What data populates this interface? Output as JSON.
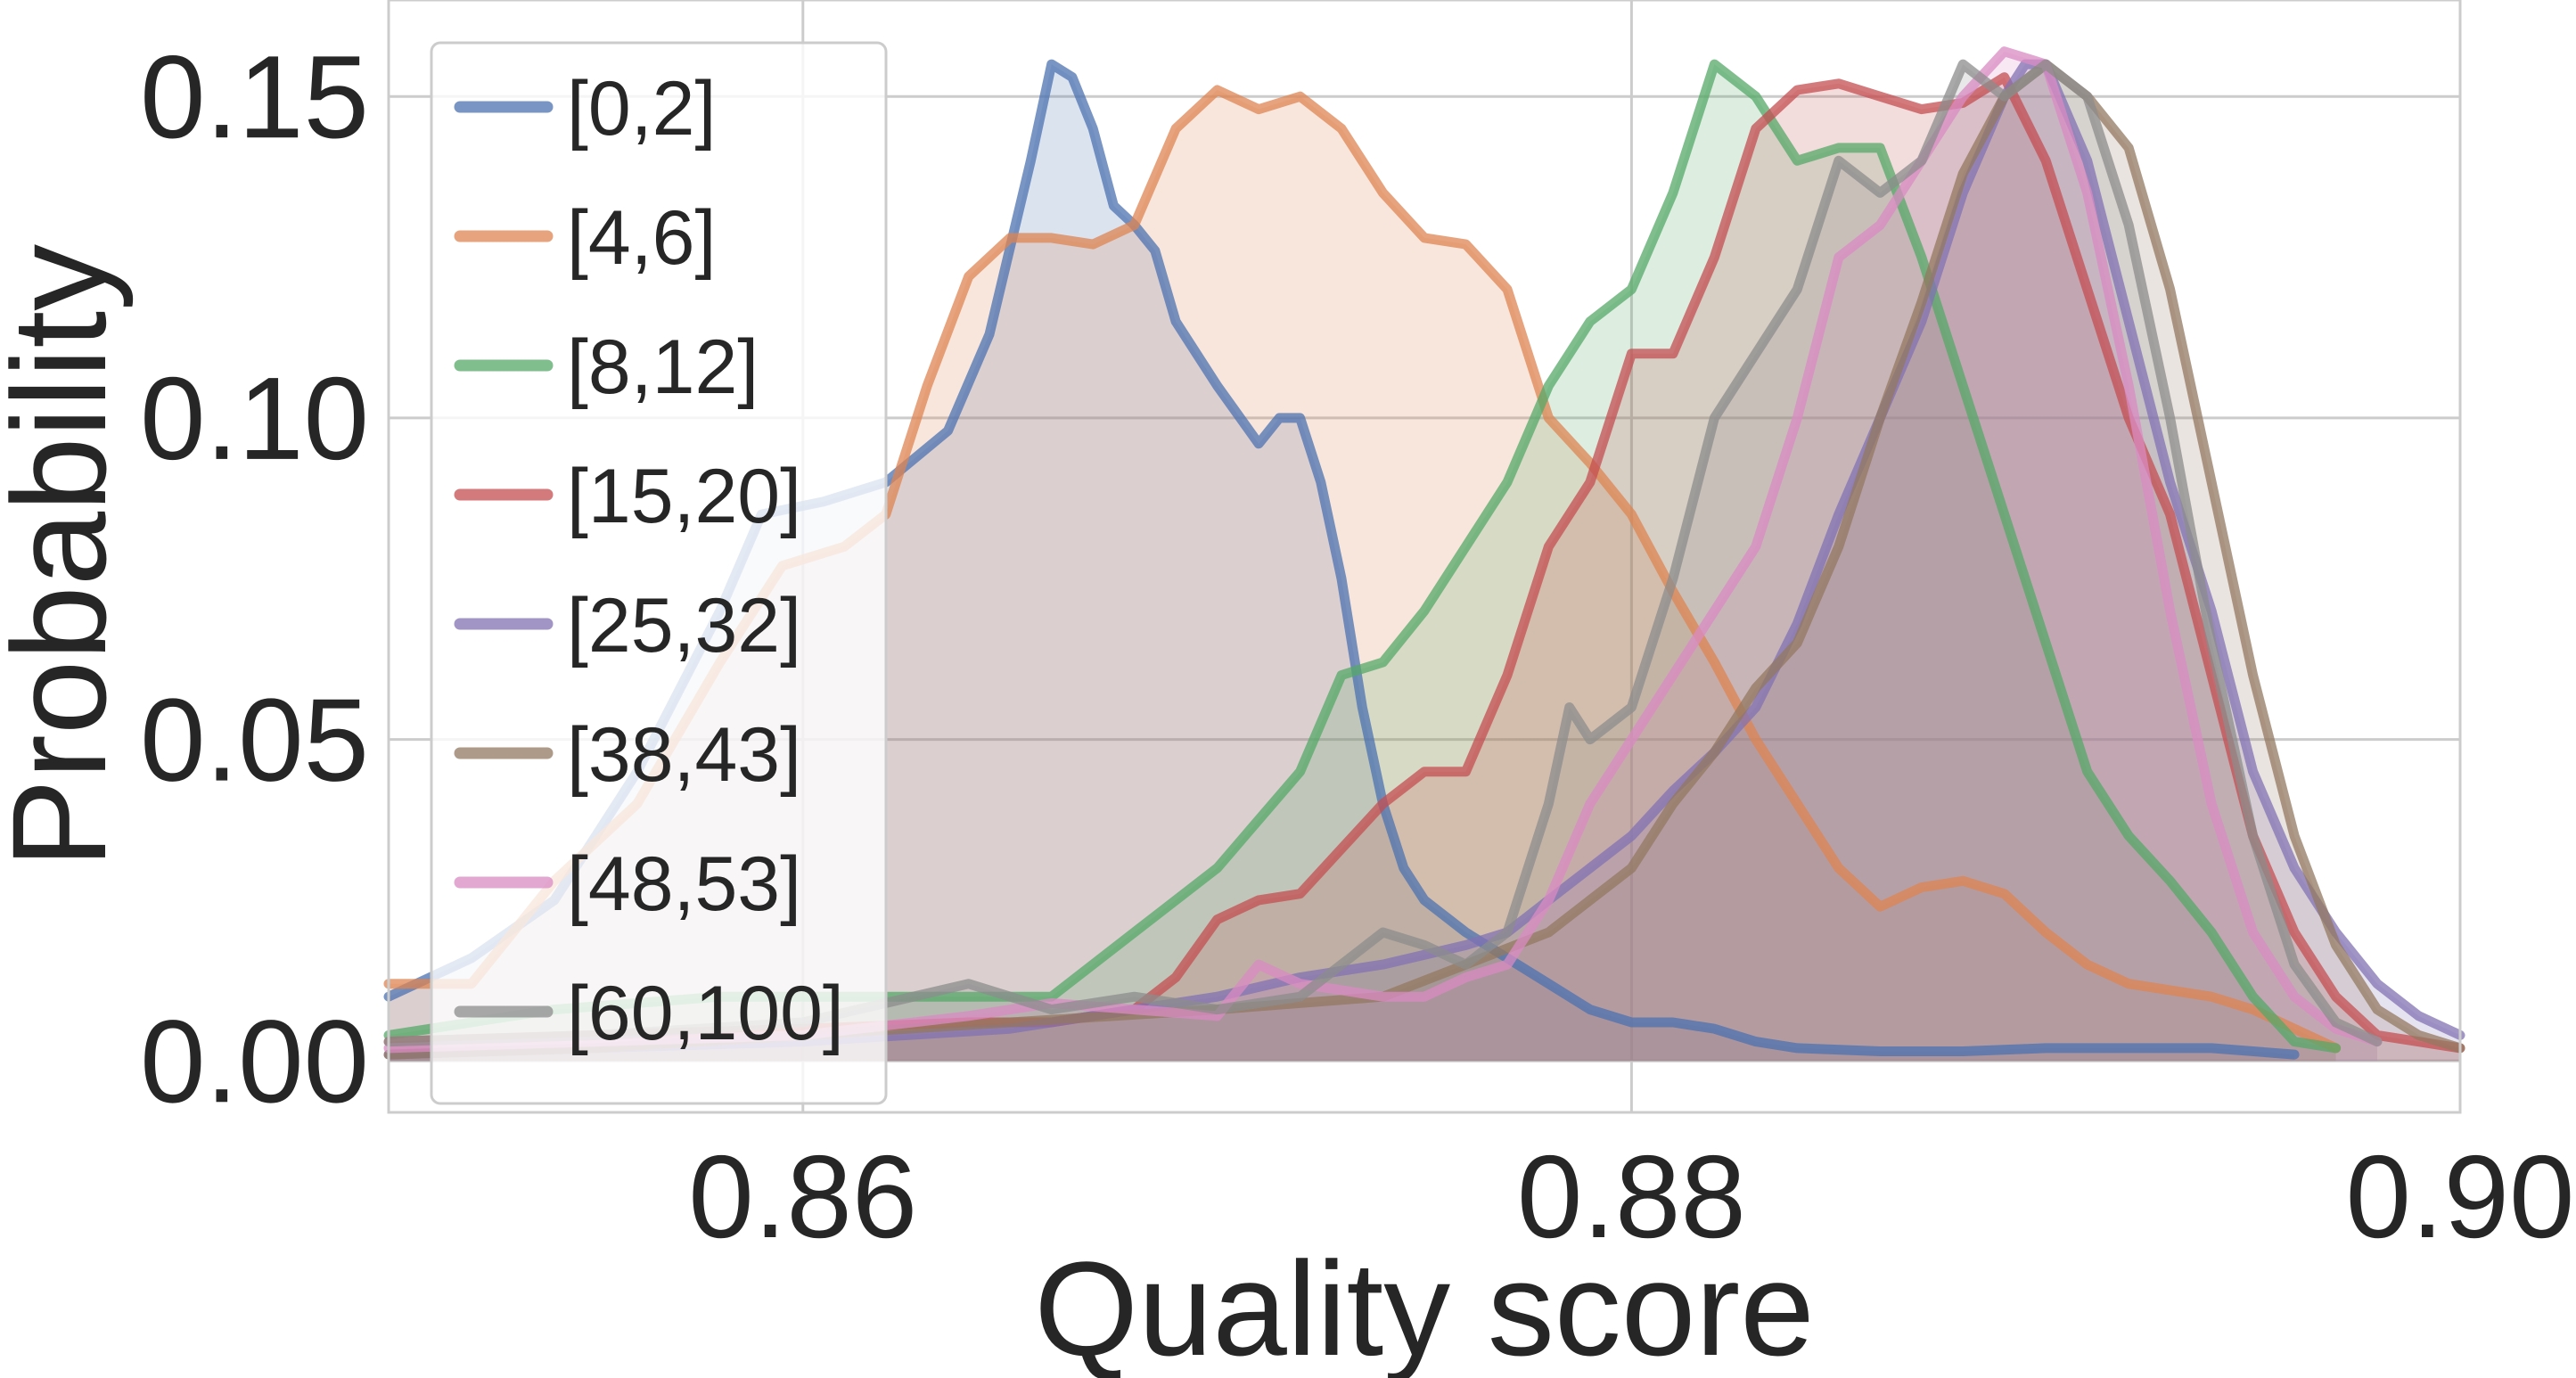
{
  "chart_data": {
    "type": "area",
    "xlabel": "Quality score",
    "ylabel": "Probability",
    "xlim": [
      0.85,
      0.9
    ],
    "ylim": [
      -0.008,
      0.165
    ],
    "x_ticks": [
      0.86,
      0.88,
      0.9
    ],
    "x_tick_labels": [
      "0.86",
      "0.88",
      "0.90"
    ],
    "y_ticks": [
      0.0,
      0.05,
      0.1,
      0.15
    ],
    "y_tick_labels": [
      "0.00",
      "0.05",
      "0.10",
      "0.15"
    ],
    "grid": true,
    "legend_position": "upper-left",
    "series": [
      {
        "name": "[0,2]",
        "color": "#4c72b0",
        "points": [
          [
            0.85,
            0.01
          ],
          [
            0.852,
            0.016
          ],
          [
            0.854,
            0.025
          ],
          [
            0.856,
            0.045
          ],
          [
            0.858,
            0.07
          ],
          [
            0.859,
            0.085
          ],
          [
            0.8605,
            0.087
          ],
          [
            0.862,
            0.09
          ],
          [
            0.8635,
            0.098
          ],
          [
            0.8645,
            0.113
          ],
          [
            0.8655,
            0.14
          ],
          [
            0.866,
            0.155
          ],
          [
            0.8665,
            0.153
          ],
          [
            0.867,
            0.145
          ],
          [
            0.8675,
            0.133
          ],
          [
            0.868,
            0.13
          ],
          [
            0.8685,
            0.126
          ],
          [
            0.869,
            0.115
          ],
          [
            0.87,
            0.105
          ],
          [
            0.871,
            0.096
          ],
          [
            0.8715,
            0.1
          ],
          [
            0.872,
            0.1
          ],
          [
            0.8725,
            0.09
          ],
          [
            0.873,
            0.075
          ],
          [
            0.8735,
            0.055
          ],
          [
            0.874,
            0.04
          ],
          [
            0.8745,
            0.03
          ],
          [
            0.875,
            0.025
          ],
          [
            0.876,
            0.02
          ],
          [
            0.877,
            0.016
          ],
          [
            0.878,
            0.012
          ],
          [
            0.879,
            0.008
          ],
          [
            0.88,
            0.006
          ],
          [
            0.881,
            0.006
          ],
          [
            0.882,
            0.005
          ],
          [
            0.883,
            0.003
          ],
          [
            0.884,
            0.002
          ],
          [
            0.886,
            0.0015
          ],
          [
            0.888,
            0.0015
          ],
          [
            0.89,
            0.002
          ],
          [
            0.892,
            0.002
          ],
          [
            0.894,
            0.002
          ],
          [
            0.896,
            0.001
          ]
        ]
      },
      {
        "name": "[4,6]",
        "color": "#dd8452",
        "points": [
          [
            0.85,
            0.012
          ],
          [
            0.852,
            0.012
          ],
          [
            0.854,
            0.028
          ],
          [
            0.856,
            0.04
          ],
          [
            0.858,
            0.062
          ],
          [
            0.8595,
            0.077
          ],
          [
            0.861,
            0.08
          ],
          [
            0.862,
            0.085
          ],
          [
            0.863,
            0.105
          ],
          [
            0.864,
            0.122
          ],
          [
            0.865,
            0.128
          ],
          [
            0.866,
            0.128
          ],
          [
            0.867,
            0.127
          ],
          [
            0.868,
            0.13
          ],
          [
            0.869,
            0.145
          ],
          [
            0.87,
            0.151
          ],
          [
            0.871,
            0.148
          ],
          [
            0.872,
            0.15
          ],
          [
            0.873,
            0.145
          ],
          [
            0.874,
            0.135
          ],
          [
            0.875,
            0.128
          ],
          [
            0.876,
            0.127
          ],
          [
            0.877,
            0.12
          ],
          [
            0.878,
            0.1
          ],
          [
            0.879,
            0.093
          ],
          [
            0.88,
            0.085
          ],
          [
            0.881,
            0.073
          ],
          [
            0.882,
            0.062
          ],
          [
            0.883,
            0.05
          ],
          [
            0.884,
            0.04
          ],
          [
            0.885,
            0.03
          ],
          [
            0.886,
            0.024
          ],
          [
            0.887,
            0.027
          ],
          [
            0.888,
            0.028
          ],
          [
            0.889,
            0.026
          ],
          [
            0.89,
            0.02
          ],
          [
            0.891,
            0.015
          ],
          [
            0.892,
            0.012
          ],
          [
            0.893,
            0.011
          ],
          [
            0.894,
            0.01
          ],
          [
            0.895,
            0.008
          ],
          [
            0.896,
            0.005
          ],
          [
            0.897,
            0.002
          ]
        ]
      },
      {
        "name": "[8,12]",
        "color": "#55a868",
        "points": [
          [
            0.85,
            0.004
          ],
          [
            0.852,
            0.006
          ],
          [
            0.854,
            0.008
          ],
          [
            0.856,
            0.009
          ],
          [
            0.858,
            0.01
          ],
          [
            0.86,
            0.01
          ],
          [
            0.862,
            0.01
          ],
          [
            0.864,
            0.01
          ],
          [
            0.866,
            0.01
          ],
          [
            0.868,
            0.02
          ],
          [
            0.87,
            0.03
          ],
          [
            0.872,
            0.045
          ],
          [
            0.873,
            0.06
          ],
          [
            0.874,
            0.062
          ],
          [
            0.875,
            0.07
          ],
          [
            0.876,
            0.08
          ],
          [
            0.877,
            0.09
          ],
          [
            0.878,
            0.105
          ],
          [
            0.879,
            0.115
          ],
          [
            0.88,
            0.12
          ],
          [
            0.881,
            0.135
          ],
          [
            0.882,
            0.155
          ],
          [
            0.883,
            0.15
          ],
          [
            0.884,
            0.14
          ],
          [
            0.885,
            0.142
          ],
          [
            0.886,
            0.142
          ],
          [
            0.887,
            0.125
          ],
          [
            0.888,
            0.105
          ],
          [
            0.889,
            0.085
          ],
          [
            0.89,
            0.065
          ],
          [
            0.891,
            0.045
          ],
          [
            0.892,
            0.035
          ],
          [
            0.893,
            0.028
          ],
          [
            0.894,
            0.02
          ],
          [
            0.895,
            0.01
          ],
          [
            0.896,
            0.003
          ],
          [
            0.897,
            0.002
          ]
        ]
      },
      {
        "name": "[15,20]",
        "color": "#c44e52",
        "points": [
          [
            0.85,
            0.003
          ],
          [
            0.855,
            0.004
          ],
          [
            0.86,
            0.005
          ],
          [
            0.864,
            0.006
          ],
          [
            0.866,
            0.006
          ],
          [
            0.868,
            0.008
          ],
          [
            0.869,
            0.013
          ],
          [
            0.87,
            0.022
          ],
          [
            0.871,
            0.025
          ],
          [
            0.872,
            0.026
          ],
          [
            0.873,
            0.033
          ],
          [
            0.874,
            0.04
          ],
          [
            0.875,
            0.045
          ],
          [
            0.876,
            0.045
          ],
          [
            0.877,
            0.06
          ],
          [
            0.878,
            0.08
          ],
          [
            0.879,
            0.09
          ],
          [
            0.88,
            0.11
          ],
          [
            0.881,
            0.11
          ],
          [
            0.882,
            0.125
          ],
          [
            0.883,
            0.145
          ],
          [
            0.884,
            0.151
          ],
          [
            0.885,
            0.152
          ],
          [
            0.886,
            0.15
          ],
          [
            0.887,
            0.148
          ],
          [
            0.888,
            0.149
          ],
          [
            0.889,
            0.153
          ],
          [
            0.89,
            0.14
          ],
          [
            0.891,
            0.12
          ],
          [
            0.892,
            0.1
          ],
          [
            0.893,
            0.085
          ],
          [
            0.894,
            0.06
          ],
          [
            0.895,
            0.035
          ],
          [
            0.896,
            0.02
          ],
          [
            0.897,
            0.01
          ],
          [
            0.898,
            0.004
          ],
          [
            0.9,
            0.002
          ]
        ]
      },
      {
        "name": "[25,32]",
        "color": "#8172b3",
        "points": [
          [
            0.85,
            0.001
          ],
          [
            0.855,
            0.002
          ],
          [
            0.86,
            0.003
          ],
          [
            0.865,
            0.005
          ],
          [
            0.868,
            0.008
          ],
          [
            0.87,
            0.01
          ],
          [
            0.872,
            0.013
          ],
          [
            0.874,
            0.015
          ],
          [
            0.876,
            0.018
          ],
          [
            0.877,
            0.02
          ],
          [
            0.878,
            0.025
          ],
          [
            0.879,
            0.03
          ],
          [
            0.88,
            0.035
          ],
          [
            0.881,
            0.042
          ],
          [
            0.882,
            0.048
          ],
          [
            0.883,
            0.055
          ],
          [
            0.884,
            0.068
          ],
          [
            0.885,
            0.085
          ],
          [
            0.886,
            0.1
          ],
          [
            0.887,
            0.115
          ],
          [
            0.888,
            0.135
          ],
          [
            0.889,
            0.15
          ],
          [
            0.8895,
            0.155
          ],
          [
            0.89,
            0.155
          ],
          [
            0.891,
            0.14
          ],
          [
            0.892,
            0.115
          ],
          [
            0.893,
            0.09
          ],
          [
            0.894,
            0.07
          ],
          [
            0.895,
            0.045
          ],
          [
            0.896,
            0.03
          ],
          [
            0.897,
            0.02
          ],
          [
            0.898,
            0.012
          ],
          [
            0.899,
            0.007
          ],
          [
            0.9,
            0.004
          ]
        ]
      },
      {
        "name": "[38,43]",
        "color": "#937860",
        "points": [
          [
            0.85,
            0.001
          ],
          [
            0.855,
            0.002
          ],
          [
            0.86,
            0.004
          ],
          [
            0.865,
            0.006
          ],
          [
            0.87,
            0.008
          ],
          [
            0.874,
            0.01
          ],
          [
            0.876,
            0.015
          ],
          [
            0.878,
            0.02
          ],
          [
            0.879,
            0.025
          ],
          [
            0.88,
            0.03
          ],
          [
            0.881,
            0.04
          ],
          [
            0.882,
            0.048
          ],
          [
            0.883,
            0.058
          ],
          [
            0.884,
            0.065
          ],
          [
            0.885,
            0.08
          ],
          [
            0.886,
            0.1
          ],
          [
            0.887,
            0.118
          ],
          [
            0.888,
            0.138
          ],
          [
            0.889,
            0.15
          ],
          [
            0.89,
            0.155
          ],
          [
            0.891,
            0.15
          ],
          [
            0.892,
            0.142
          ],
          [
            0.893,
            0.12
          ],
          [
            0.894,
            0.09
          ],
          [
            0.895,
            0.06
          ],
          [
            0.896,
            0.035
          ],
          [
            0.897,
            0.018
          ],
          [
            0.898,
            0.008
          ],
          [
            0.899,
            0.004
          ],
          [
            0.9,
            0.002
          ]
        ]
      },
      {
        "name": "[48,53]",
        "color": "#da8bc3",
        "points": [
          [
            0.85,
            0.002
          ],
          [
            0.855,
            0.003
          ],
          [
            0.86,
            0.004
          ],
          [
            0.864,
            0.007
          ],
          [
            0.866,
            0.009
          ],
          [
            0.868,
            0.008
          ],
          [
            0.87,
            0.007
          ],
          [
            0.871,
            0.015
          ],
          [
            0.872,
            0.012
          ],
          [
            0.874,
            0.01
          ],
          [
            0.875,
            0.01
          ],
          [
            0.876,
            0.013
          ],
          [
            0.877,
            0.015
          ],
          [
            0.878,
            0.025
          ],
          [
            0.879,
            0.04
          ],
          [
            0.88,
            0.05
          ],
          [
            0.881,
            0.06
          ],
          [
            0.882,
            0.07
          ],
          [
            0.883,
            0.08
          ],
          [
            0.884,
            0.1
          ],
          [
            0.885,
            0.125
          ],
          [
            0.886,
            0.13
          ],
          [
            0.887,
            0.14
          ],
          [
            0.888,
            0.15
          ],
          [
            0.889,
            0.157
          ],
          [
            0.89,
            0.155
          ],
          [
            0.891,
            0.135
          ],
          [
            0.892,
            0.105
          ],
          [
            0.893,
            0.07
          ],
          [
            0.894,
            0.04
          ],
          [
            0.895,
            0.02
          ],
          [
            0.896,
            0.01
          ],
          [
            0.897,
            0.005
          ],
          [
            0.898,
            0.003
          ]
        ]
      },
      {
        "name": "[60,100]",
        "color": "#8c8c8c",
        "points": [
          [
            0.85,
            0.003
          ],
          [
            0.855,
            0.004
          ],
          [
            0.86,
            0.006
          ],
          [
            0.864,
            0.012
          ],
          [
            0.866,
            0.008
          ],
          [
            0.868,
            0.01
          ],
          [
            0.87,
            0.008
          ],
          [
            0.872,
            0.01
          ],
          [
            0.873,
            0.015
          ],
          [
            0.874,
            0.02
          ],
          [
            0.875,
            0.018
          ],
          [
            0.876,
            0.015
          ],
          [
            0.877,
            0.02
          ],
          [
            0.878,
            0.04
          ],
          [
            0.8785,
            0.055
          ],
          [
            0.879,
            0.05
          ],
          [
            0.88,
            0.055
          ],
          [
            0.881,
            0.075
          ],
          [
            0.882,
            0.1
          ],
          [
            0.883,
            0.11
          ],
          [
            0.884,
            0.12
          ],
          [
            0.885,
            0.14
          ],
          [
            0.886,
            0.135
          ],
          [
            0.887,
            0.14
          ],
          [
            0.888,
            0.155
          ],
          [
            0.889,
            0.15
          ],
          [
            0.89,
            0.155
          ],
          [
            0.891,
            0.15
          ],
          [
            0.892,
            0.13
          ],
          [
            0.893,
            0.1
          ],
          [
            0.894,
            0.065
          ],
          [
            0.895,
            0.035
          ],
          [
            0.896,
            0.015
          ],
          [
            0.897,
            0.006
          ],
          [
            0.898,
            0.003
          ]
        ]
      }
    ]
  }
}
